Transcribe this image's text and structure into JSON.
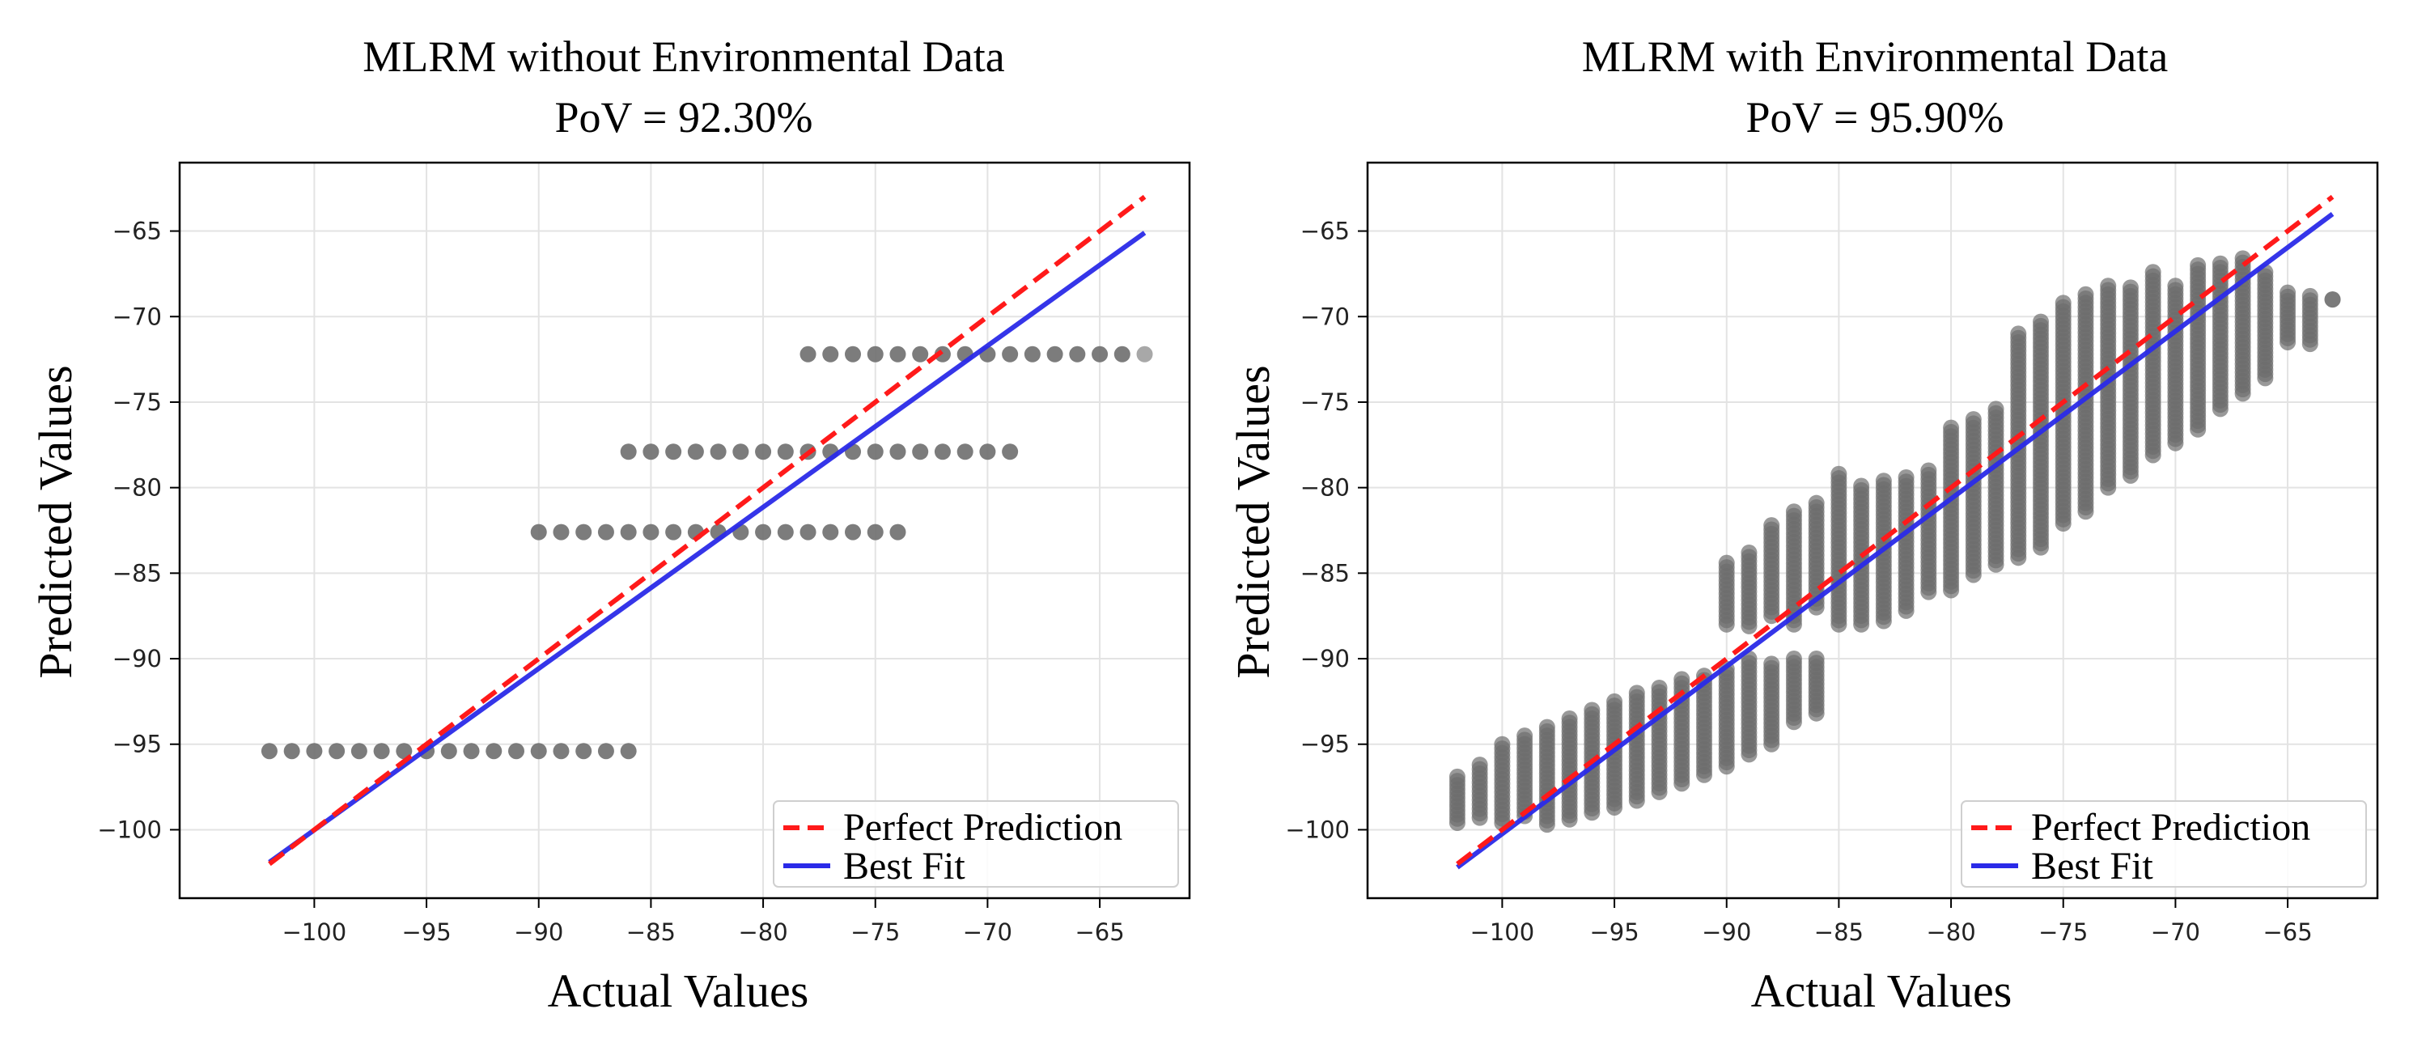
{
  "chart_data": [
    {
      "type": "scatter",
      "title": "MLRM without Environmental Data",
      "subtitle": "PoV = 92.30%",
      "xlabel": "Actual Values",
      "ylabel": "Predicted Values",
      "xlim": [
        -106,
        -61
      ],
      "ylim": [
        -104,
        -61
      ],
      "xticks": [
        -100,
        -95,
        -90,
        -85,
        -80,
        -75,
        -70,
        -65
      ],
      "yticks": [
        -65,
        -70,
        -75,
        -80,
        -85,
        -90,
        -95,
        -100
      ],
      "xtick_labels": [
        "−100",
        "−95",
        "−90",
        "−85",
        "−80",
        "−75",
        "−70",
        "−65"
      ],
      "ytick_labels": [
        "−65",
        "−70",
        "−75",
        "−80",
        "−85",
        "−90",
        "−95",
        "−100"
      ],
      "grid": true,
      "legend_position": "bottom-right",
      "legend": {
        "perfect": "Perfect Prediction",
        "best": "Best Fit"
      },
      "point_color": "#6e6e6e",
      "perfect_color": "#ff1a1a",
      "best_color": "#2a2ae8",
      "scatter_bands": [
        {
          "y_center": -95.4,
          "y_spread": 0.15,
          "x_from": -102,
          "x_to": -86,
          "columns": 17
        },
        {
          "y_center": -82.6,
          "y_spread": 0.15,
          "x_from": -90,
          "x_to": -74,
          "columns": 17
        },
        {
          "y_center": -77.9,
          "y_spread": 0.15,
          "x_from": -86,
          "x_to": -69,
          "columns": 18
        },
        {
          "y_center": -72.2,
          "y_spread": 0.15,
          "x_from": -78,
          "x_to": -63,
          "columns": 16
        }
      ],
      "perfect_line": {
        "x": [
          -102,
          -63
        ],
        "y": [
          -102,
          -63
        ]
      },
      "best_fit_line": {
        "x": [
          -102,
          -63
        ],
        "y": [
          -101.9,
          -65.1
        ]
      }
    },
    {
      "type": "scatter",
      "title": "MLRM with Environmental Data",
      "subtitle": "PoV = 95.90%",
      "xlabel": "Actual Values",
      "ylabel": "Predicted Values",
      "xlim": [
        -106,
        -61
      ],
      "ylim": [
        -104,
        -61
      ],
      "xticks": [
        -100,
        -95,
        -90,
        -85,
        -80,
        -75,
        -70,
        -65
      ],
      "yticks": [
        -65,
        -70,
        -75,
        -80,
        -85,
        -90,
        -95,
        -100
      ],
      "xtick_labels": [
        "−100",
        "−95",
        "−90",
        "−85",
        "−80",
        "−75",
        "−70",
        "−65"
      ],
      "ytick_labels": [
        "−65",
        "−70",
        "−75",
        "−80",
        "−85",
        "−90",
        "−95",
        "−100"
      ],
      "grid": true,
      "legend_position": "bottom-right",
      "legend": {
        "perfect": "Perfect Prediction",
        "best": "Best Fit"
      },
      "point_color": "#6e6e6e",
      "perfect_color": "#ff1a1a",
      "best_color": "#2a2ae8",
      "scatter_columns": [
        {
          "x": -102,
          "ymin": -99.6,
          "ymax": -96.9
        },
        {
          "x": -101,
          "ymin": -99.3,
          "ymax": -96.2
        },
        {
          "x": -100,
          "ymin": -99.6,
          "ymax": -95.0
        },
        {
          "x": -99,
          "ymin": -99.2,
          "ymax": -94.5
        },
        {
          "x": -98,
          "ymin": -99.7,
          "ymax": -94.0
        },
        {
          "x": -97,
          "ymin": -99.4,
          "ymax": -93.5
        },
        {
          "x": -96,
          "ymin": -99.0,
          "ymax": -93.0
        },
        {
          "x": -95,
          "ymin": -98.7,
          "ymax": -92.5
        },
        {
          "x": -94,
          "ymin": -98.3,
          "ymax": -92.0
        },
        {
          "x": -93,
          "ymin": -97.8,
          "ymax": -91.7
        },
        {
          "x": -92,
          "ymin": -97.3,
          "ymax": -91.2
        },
        {
          "x": -91,
          "ymin": -96.8,
          "ymax": -91.0
        },
        {
          "x": -90,
          "ymin": -96.3,
          "ymax": -90.6
        },
        {
          "x": -89,
          "ymin": -95.6,
          "ymax": -90.0
        },
        {
          "x": -88,
          "ymin": -95.0,
          "ymax": -90.3
        },
        {
          "x": -87,
          "ymin": -93.7,
          "ymax": -90.0
        },
        {
          "x": -86,
          "ymin": -93.2,
          "ymax": -90.0
        },
        {
          "x": -90,
          "ymin": -88.0,
          "ymax": -84.4
        },
        {
          "x": -89,
          "ymin": -88.1,
          "ymax": -83.8
        },
        {
          "x": -88,
          "ymin": -87.5,
          "ymax": -82.2
        },
        {
          "x": -87,
          "ymin": -88.0,
          "ymax": -81.4
        },
        {
          "x": -86,
          "ymin": -87.0,
          "ymax": -80.9
        },
        {
          "x": -85,
          "ymin": -88.0,
          "ymax": -79.2
        },
        {
          "x": -84,
          "ymin": -88.0,
          "ymax": -79.9
        },
        {
          "x": -83,
          "ymin": -87.8,
          "ymax": -79.6
        },
        {
          "x": -82,
          "ymin": -87.2,
          "ymax": -79.4
        },
        {
          "x": -81,
          "ymin": -86.1,
          "ymax": -79.0
        },
        {
          "x": -80,
          "ymin": -86.0,
          "ymax": -76.5
        },
        {
          "x": -79,
          "ymin": -85.1,
          "ymax": -76.0
        },
        {
          "x": -78,
          "ymin": -84.5,
          "ymax": -75.4
        },
        {
          "x": -77,
          "ymin": -84.1,
          "ymax": -71.0
        },
        {
          "x": -76,
          "ymin": -83.5,
          "ymax": -70.3
        },
        {
          "x": -75,
          "ymin": -82.1,
          "ymax": -69.2
        },
        {
          "x": -74,
          "ymin": -81.4,
          "ymax": -68.7
        },
        {
          "x": -73,
          "ymin": -80.0,
          "ymax": -68.2
        },
        {
          "x": -72,
          "ymin": -79.3,
          "ymax": -68.3
        },
        {
          "x": -71,
          "ymin": -78.1,
          "ymax": -67.4
        },
        {
          "x": -70,
          "ymin": -77.4,
          "ymax": -68.2
        },
        {
          "x": -69,
          "ymin": -76.6,
          "ymax": -67.0
        },
        {
          "x": -68,
          "ymin": -75.4,
          "ymax": -66.9
        },
        {
          "x": -67,
          "ymin": -74.5,
          "ymax": -66.6
        },
        {
          "x": -66,
          "ymin": -73.6,
          "ymax": -67.4
        },
        {
          "x": -65,
          "ymin": -71.5,
          "ymax": -68.6
        },
        {
          "x": -64,
          "ymin": -71.6,
          "ymax": -68.8
        },
        {
          "x": -63,
          "ymin": -69.0,
          "ymax": -69.0
        }
      ],
      "perfect_line": {
        "x": [
          -102,
          -63
        ],
        "y": [
          -102,
          -63
        ]
      },
      "best_fit_line": {
        "x": [
          -102,
          -63
        ],
        "y": [
          -102.2,
          -64.0
        ]
      }
    }
  ]
}
